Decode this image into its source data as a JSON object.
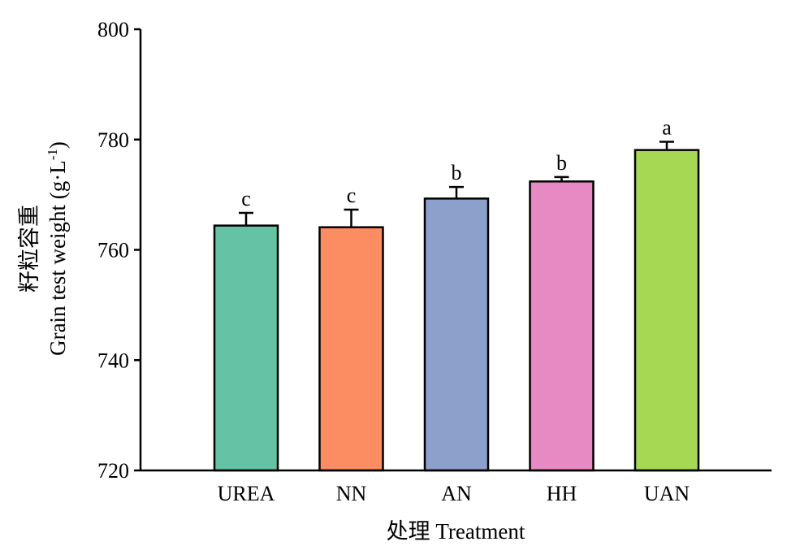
{
  "chart_data": {
    "type": "bar",
    "categories": [
      "UREA",
      "NN",
      "AN",
      "HH",
      "UAN"
    ],
    "values": [
      764.4,
      764.1,
      769.3,
      772.4,
      778.1
    ],
    "errors": [
      2.3,
      3.2,
      2.1,
      0.8,
      1.5
    ],
    "significance": [
      "c",
      "c",
      "b",
      "b",
      "a"
    ],
    "colors": [
      "#66c2a5",
      "#fc8d62",
      "#8da0cb",
      "#e78ac3",
      "#a6d854"
    ],
    "ylim": [
      720,
      800
    ],
    "yticks": [
      720,
      740,
      760,
      780,
      800
    ],
    "ytick_labels": [
      "720",
      "740",
      "760",
      "780",
      "800"
    ],
    "ylabel_cn": "籽粒容重",
    "ylabel_en": "Grain test weight (g·L",
    "ylabel_sup": "-1",
    "ylabel_close": ")",
    "xlabel": "处理 Treatment",
    "grid": false,
    "legend": "none"
  }
}
